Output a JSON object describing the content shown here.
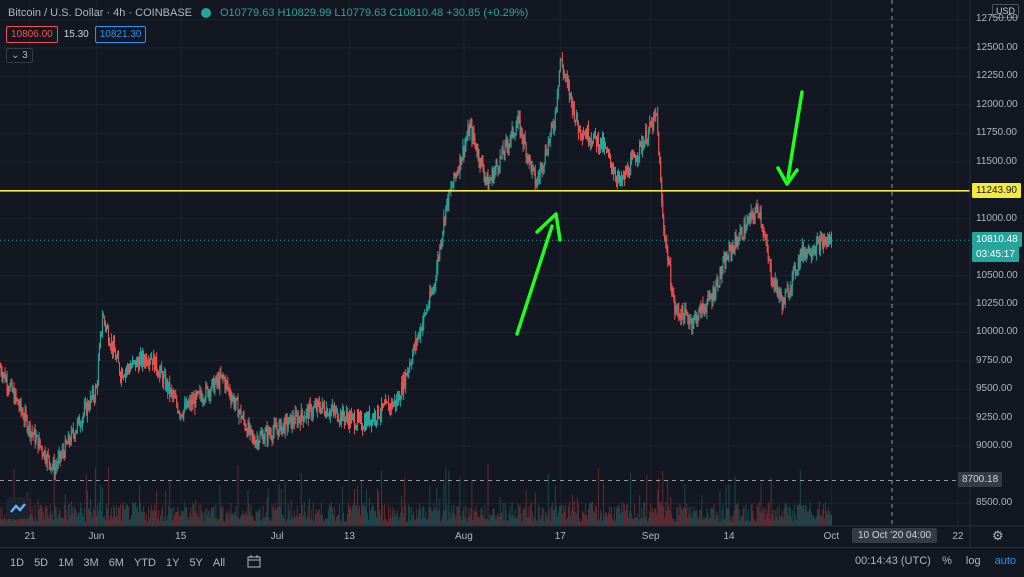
{
  "header": {
    "symbol": "Bitcoin / U.S. Dollar · 4h · COINBASE",
    "ohlc": "O10779.63  H10829.99  L10779.63  C10810.48  +30.85 (+0.29%)",
    "bid": "10806.00",
    "spread": "15.30",
    "ask": "10821.30",
    "indicator_toggle": "⌄ 3"
  },
  "currency_label": "USD",
  "y_axis_labels": [
    "12750.00",
    "12500.00",
    "12250.00",
    "12000.00",
    "11750.00",
    "11500.00",
    "11000.00",
    "10500.00",
    "10250.00",
    "10000.00",
    "9750.00",
    "9500.00",
    "9250.00",
    "9000.00",
    "8500.00"
  ],
  "x_axis_labels": [
    "21",
    "Jun",
    "15",
    "Jul",
    "13",
    "Aug",
    "17",
    "Sep",
    "14",
    "Oct",
    "22"
  ],
  "tags": {
    "horizontal_line": "11243.90",
    "last_price": "10810.48",
    "countdown": "03:45:17",
    "crosshair_price": "8700.18",
    "crosshair_date": "10 Oct '20   04:00"
  },
  "toolbar": {
    "timeframes": [
      "1D",
      "5D",
      "1M",
      "3M",
      "6M",
      "YTD",
      "1Y",
      "5Y",
      "All"
    ],
    "clock": "00:14:43 (UTC)",
    "percent": "%",
    "log": "log",
    "auto": "auto"
  },
  "colors": {
    "background": "#131722",
    "up": "#26a69a",
    "down": "#ef5350",
    "hline": "#f5e93d",
    "arrow": "#1eff1e"
  },
  "chart_data": {
    "type": "candlestick",
    "symbol": "BTCUSD",
    "interval": "4h",
    "ylim": [
      8300,
      12850
    ],
    "x_range": [
      "2020-05-16",
      "2020-10-24"
    ],
    "horizontal_line": 11243.9,
    "last_close": 10810.48,
    "approx_close_path": [
      {
        "date": "2020-05-16",
        "close": 9700
      },
      {
        "date": "2020-05-21",
        "close": 9150
      },
      {
        "date": "2020-05-25",
        "close": 8800
      },
      {
        "date": "2020-06-01",
        "close": 9500
      },
      {
        "date": "2020-06-02",
        "close": 10150
      },
      {
        "date": "2020-06-05",
        "close": 9650
      },
      {
        "date": "2020-06-10",
        "close": 9800
      },
      {
        "date": "2020-06-15",
        "close": 9300
      },
      {
        "date": "2020-06-22",
        "close": 9600
      },
      {
        "date": "2020-06-27",
        "close": 9050
      },
      {
        "date": "2020-07-01",
        "close": 9150
      },
      {
        "date": "2020-07-08",
        "close": 9350
      },
      {
        "date": "2020-07-15",
        "close": 9200
      },
      {
        "date": "2020-07-21",
        "close": 9400
      },
      {
        "date": "2020-07-27",
        "close": 10400
      },
      {
        "date": "2020-07-29",
        "close": 11100
      },
      {
        "date": "2020-08-02",
        "close": 11800
      },
      {
        "date": "2020-08-05",
        "close": 11300
      },
      {
        "date": "2020-08-10",
        "close": 11850
      },
      {
        "date": "2020-08-13",
        "close": 11300
      },
      {
        "date": "2020-08-16",
        "close": 11850
      },
      {
        "date": "2020-08-17",
        "close": 12400
      },
      {
        "date": "2020-08-20",
        "close": 11800
      },
      {
        "date": "2020-08-24",
        "close": 11650
      },
      {
        "date": "2020-08-27",
        "close": 11300
      },
      {
        "date": "2020-09-01",
        "close": 11800
      },
      {
        "date": "2020-09-02",
        "close": 11900
      },
      {
        "date": "2020-09-03",
        "close": 11000
      },
      {
        "date": "2020-09-05",
        "close": 10200
      },
      {
        "date": "2020-09-08",
        "close": 10100
      },
      {
        "date": "2020-09-11",
        "close": 10300
      },
      {
        "date": "2020-09-14",
        "close": 10700
      },
      {
        "date": "2020-09-17",
        "close": 10950
      },
      {
        "date": "2020-09-19",
        "close": 11100
      },
      {
        "date": "2020-09-21",
        "close": 10500
      },
      {
        "date": "2020-09-23",
        "close": 10250
      },
      {
        "date": "2020-09-26",
        "close": 10700
      },
      {
        "date": "2020-09-30",
        "close": 10800
      },
      {
        "date": "2020-10-01",
        "close": 10810.48
      }
    ]
  }
}
